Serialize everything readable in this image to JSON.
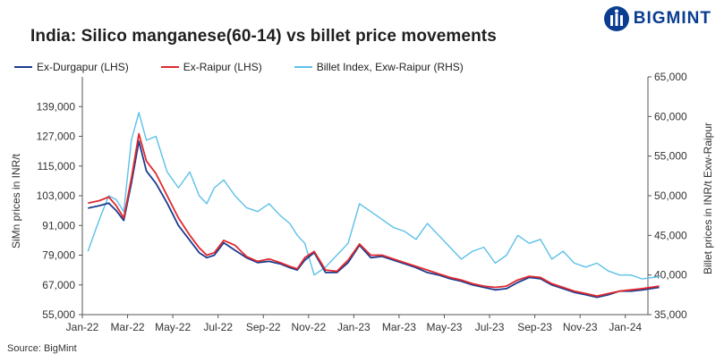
{
  "brand": {
    "name": "BIGMINT",
    "color": "#0a3d91"
  },
  "source": "Source: BigMint",
  "chart_data": {
    "type": "line",
    "title": "India: Silico manganese(60-14) vs billet price movements",
    "ylabel_left": "SiMn prices in INR/t",
    "ylabel_right": "Billet prices in INR/t Exw-Raipur",
    "ylim_left": [
      55000,
      151000
    ],
    "ylim_right": [
      35000,
      65000
    ],
    "left_ticks": [
      "55,000",
      "67,000",
      "79,000",
      "91,000",
      "103,000",
      "115,000",
      "127,000",
      "139,000"
    ],
    "right_ticks": [
      "35,000",
      "40,000",
      "45,000",
      "50,000",
      "55,000",
      "60,000",
      "65,000"
    ],
    "left_tick_values": [
      55000,
      67000,
      79000,
      91000,
      103000,
      115000,
      127000,
      139000
    ],
    "right_tick_values": [
      35000,
      40000,
      45000,
      50000,
      55000,
      60000,
      65000
    ],
    "x_tick_labels": [
      "Jan-22",
      "Mar-22",
      "May-22",
      "Jul-22",
      "Sep-22",
      "Nov-22",
      "Jan-23",
      "Mar-23",
      "May-23",
      "Jul-23",
      "Sep-23",
      "Nov-23",
      "Jan-24"
    ],
    "x_range": [
      "Jan-22",
      "Feb-24"
    ],
    "legend_position": "top",
    "grid": false,
    "series": [
      {
        "name": "Ex-Durgapur (LHS)",
        "axis": "left",
        "color": "#1b3d8f",
        "x": [
          "Jan-22",
          "Jan-22",
          "Feb-22",
          "Feb-22",
          "Feb-22",
          "Mar-22",
          "Mar-22",
          "Mar-22",
          "Apr-22",
          "Apr-22",
          "May-22",
          "May-22",
          "Jun-22",
          "Jun-22",
          "Jun-22",
          "Jul-22",
          "Jul-22",
          "Aug-22",
          "Aug-22",
          "Sep-22",
          "Sep-22",
          "Oct-22",
          "Oct-22",
          "Oct-22",
          "Nov-22",
          "Nov-22",
          "Dec-22",
          "Dec-22",
          "Jan-23",
          "Jan-23",
          "Feb-23",
          "Feb-23",
          "Mar-23",
          "Mar-23",
          "Apr-23",
          "Apr-23",
          "May-23",
          "May-23",
          "Jun-23",
          "Jun-23",
          "Jul-23",
          "Jul-23",
          "Aug-23",
          "Aug-23",
          "Sep-23",
          "Sep-23",
          "Oct-23",
          "Oct-23",
          "Nov-23",
          "Nov-23",
          "Dec-23",
          "Dec-23",
          "Jan-24",
          "Jan-24",
          "Feb-24"
        ],
        "values": [
          98000,
          99000,
          100000,
          97000,
          93000,
          108000,
          125000,
          113000,
          108000,
          100000,
          91000,
          85000,
          80000,
          78000,
          79000,
          84000,
          81000,
          78000,
          76000,
          76500,
          75500,
          74000,
          73000,
          77000,
          80000,
          72000,
          72000,
          76000,
          83000,
          78000,
          78500,
          77000,
          75500,
          74000,
          72000,
          71000,
          69500,
          68500,
          67000,
          66000,
          65000,
          65500,
          68000,
          70000,
          69500,
          67000,
          65500,
          64000,
          63000,
          62000,
          63000,
          64500,
          64500,
          65000,
          66000
        ]
      },
      {
        "name": "Ex-Raipur (LHS)",
        "axis": "left",
        "color": "#e0282e",
        "x": [
          "Jan-22",
          "Jan-22",
          "Feb-22",
          "Feb-22",
          "Feb-22",
          "Mar-22",
          "Mar-22",
          "Mar-22",
          "Apr-22",
          "Apr-22",
          "May-22",
          "May-22",
          "Jun-22",
          "Jun-22",
          "Jun-22",
          "Jul-22",
          "Jul-22",
          "Aug-22",
          "Aug-22",
          "Sep-22",
          "Sep-22",
          "Oct-22",
          "Oct-22",
          "Oct-22",
          "Nov-22",
          "Nov-22",
          "Dec-22",
          "Dec-22",
          "Jan-23",
          "Jan-23",
          "Feb-23",
          "Feb-23",
          "Mar-23",
          "Mar-23",
          "Apr-23",
          "Apr-23",
          "May-23",
          "May-23",
          "Jun-23",
          "Jun-23",
          "Jul-23",
          "Jul-23",
          "Aug-23",
          "Aug-23",
          "Sep-23",
          "Sep-23",
          "Oct-23",
          "Oct-23",
          "Nov-23",
          "Nov-23",
          "Dec-23",
          "Dec-23",
          "Jan-24",
          "Jan-24",
          "Feb-24"
        ],
        "values": [
          100000,
          101000,
          102500,
          99000,
          94000,
          110000,
          128000,
          117000,
          112000,
          103000,
          94000,
          87000,
          82000,
          79000,
          80000,
          85000,
          83000,
          78500,
          76500,
          77500,
          76000,
          74500,
          73500,
          78000,
          80500,
          73000,
          72500,
          77000,
          83500,
          79000,
          79000,
          77500,
          76000,
          74500,
          73000,
          71500,
          70000,
          69000,
          67500,
          66500,
          66000,
          66500,
          69000,
          70500,
          70000,
          67500,
          66000,
          64500,
          63500,
          62500,
          63500,
          64500,
          65000,
          65500,
          66500
        ]
      },
      {
        "name": "Billet Index, Exw-Raipur (RHS)",
        "axis": "right",
        "color": "#5bc0e8",
        "x": [
          "Jan-22",
          "Jan-22",
          "Feb-22",
          "Feb-22",
          "Feb-22",
          "Mar-22",
          "Mar-22",
          "Mar-22",
          "Apr-22",
          "Apr-22",
          "May-22",
          "May-22",
          "Jun-22",
          "Jun-22",
          "Jun-22",
          "Jul-22",
          "Jul-22",
          "Aug-22",
          "Aug-22",
          "Sep-22",
          "Sep-22",
          "Oct-22",
          "Oct-22",
          "Oct-22",
          "Nov-22",
          "Nov-22",
          "Dec-22",
          "Dec-22",
          "Jan-23",
          "Jan-23",
          "Feb-23",
          "Feb-23",
          "Mar-23",
          "Mar-23",
          "Apr-23",
          "Apr-23",
          "May-23",
          "May-23",
          "Jun-23",
          "Jun-23",
          "Jul-23",
          "Jul-23",
          "Aug-23",
          "Aug-23",
          "Sep-23",
          "Sep-23",
          "Oct-23",
          "Oct-23",
          "Nov-23",
          "Nov-23",
          "Dec-23",
          "Dec-23",
          "Jan-24",
          "Jan-24",
          "Feb-24"
        ],
        "values": [
          43000,
          47000,
          50000,
          49500,
          48000,
          57000,
          60500,
          57000,
          57500,
          53000,
          51000,
          53000,
          50000,
          49000,
          51000,
          52000,
          50000,
          48500,
          48000,
          49000,
          47500,
          46500,
          45000,
          44000,
          40000,
          41000,
          42500,
          44000,
          49000,
          48000,
          47000,
          46000,
          45500,
          44500,
          46500,
          45000,
          43500,
          42000,
          43000,
          43500,
          41500,
          42500,
          45000,
          44000,
          44500,
          42000,
          43000,
          41500,
          41000,
          41500,
          40500,
          40000,
          40000,
          39500,
          39800
        ]
      }
    ]
  }
}
